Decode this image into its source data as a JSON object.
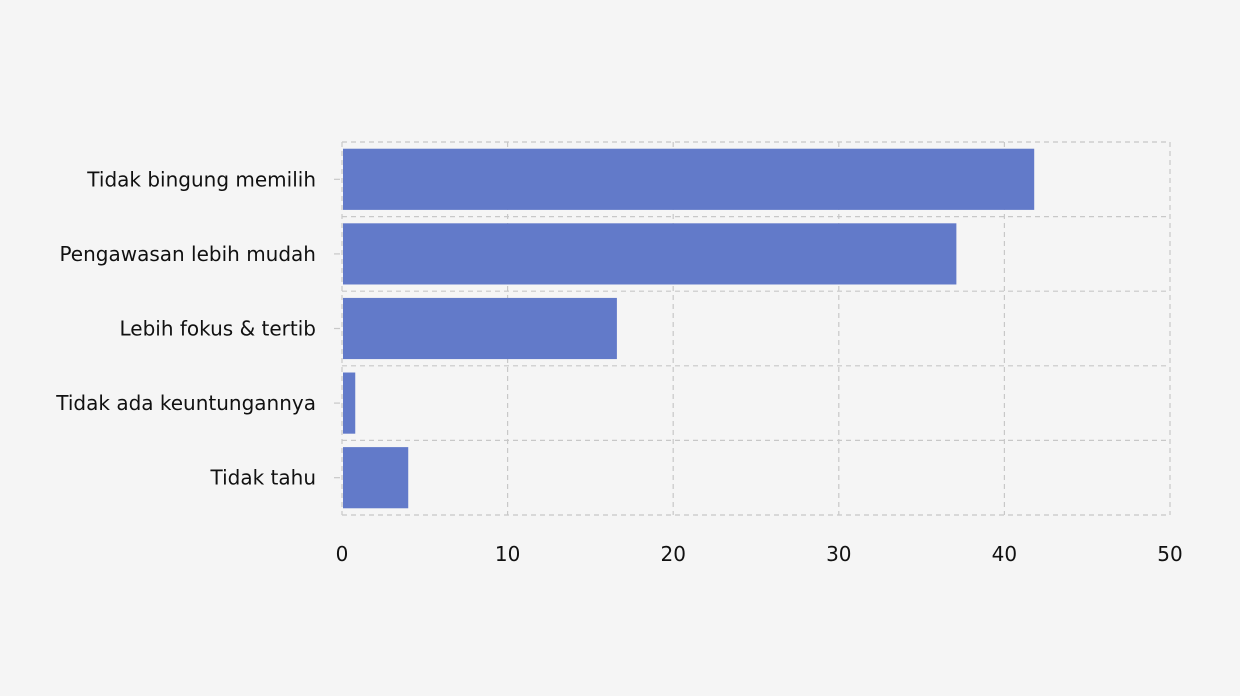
{
  "chart_data": {
    "type": "bar",
    "orientation": "horizontal",
    "categories": [
      "Tidak bingung memilih",
      "Pengawasan lebih mudah",
      "Lebih fokus & tertib",
      "Tidak ada keuntungannya",
      "Tidak tahu"
    ],
    "values": [
      41.8,
      37.1,
      16.6,
      0.8,
      4.0
    ],
    "xlim": [
      0,
      50
    ],
    "xticks": [
      "0",
      "10",
      "20",
      "30",
      "40",
      "50"
    ],
    "title": "",
    "xlabel": "",
    "ylabel": "",
    "grid": true,
    "legend": "none",
    "colors": {
      "bar": "#627ac9",
      "background": "#f5f5f5",
      "grid": "#c8c8c8",
      "text": "#111111"
    }
  }
}
